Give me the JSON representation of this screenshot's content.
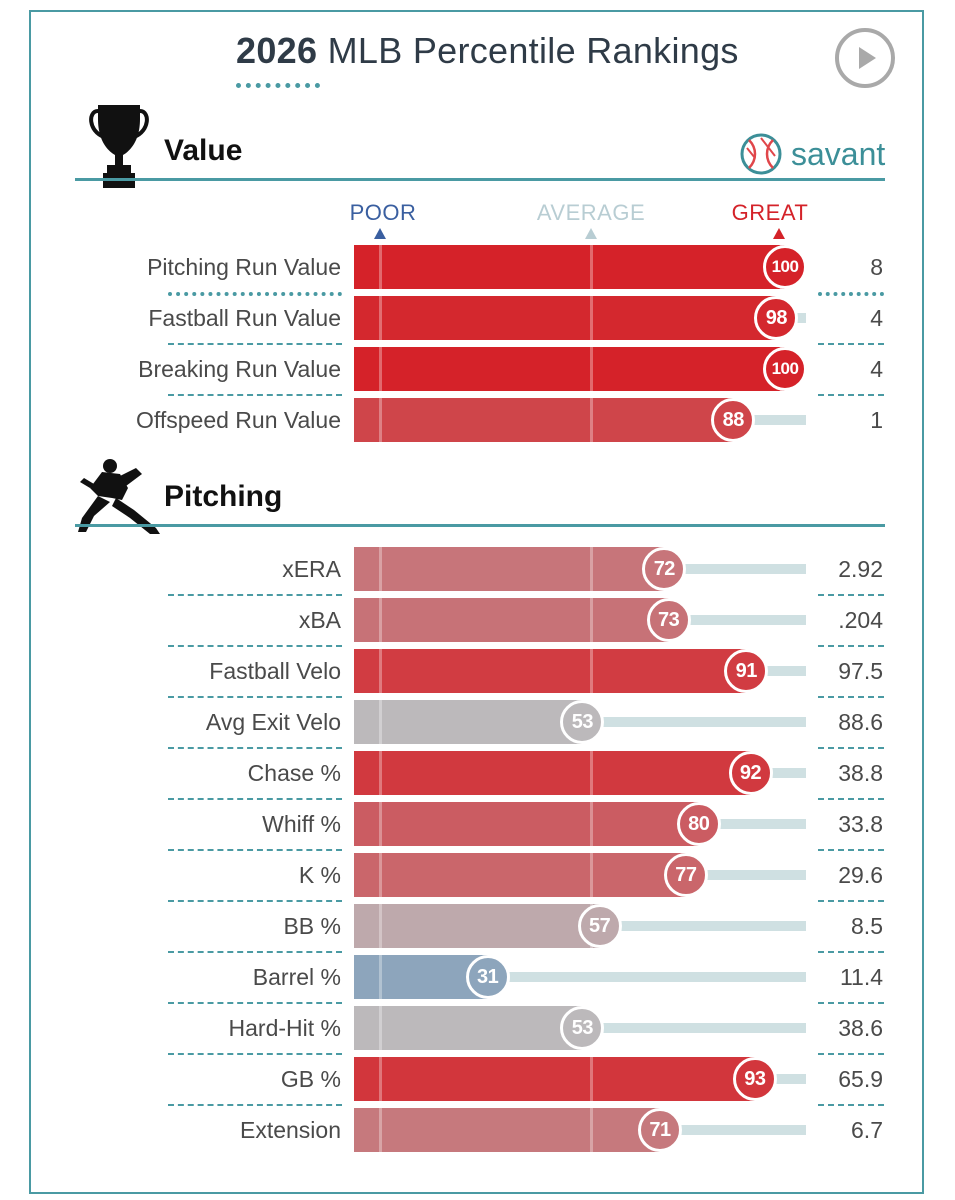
{
  "header": {
    "title_bold": "2026",
    "title_rest": " MLB Percentile Rankings",
    "play_icon": "play-icon"
  },
  "value_section": {
    "title": "Value",
    "icon": "trophy-icon",
    "brand": "savant",
    "brand_icon": "baseball-icon"
  },
  "pitching_section": {
    "title": "Pitching",
    "icon": "pitcher-silhouette-icon"
  },
  "scale": {
    "poor": "POOR",
    "average": "AVERAGE",
    "great": "GREAT",
    "colors": {
      "poor": "#3a5fa0",
      "average": "#b8cdd3",
      "great": "#d42229"
    }
  },
  "chart_data": {
    "type": "bar",
    "title": "2026 MLB Percentile Rankings",
    "xlim": [
      0,
      100
    ],
    "groups": [
      {
        "name": "Value",
        "metrics": [
          {
            "label": "Pitching Run Value",
            "percentile": 100,
            "value": "8"
          },
          {
            "label": "Fastball Run Value",
            "percentile": 98,
            "value": "4"
          },
          {
            "label": "Breaking Run Value",
            "percentile": 100,
            "value": "4"
          },
          {
            "label": "Offspeed Run Value",
            "percentile": 88,
            "value": "1"
          }
        ]
      },
      {
        "name": "Pitching",
        "metrics": [
          {
            "label": "xERA",
            "percentile": 72,
            "value": "2.92"
          },
          {
            "label": "xBA",
            "percentile": 73,
            "value": ".204"
          },
          {
            "label": "Fastball Velo",
            "percentile": 91,
            "value": "97.5"
          },
          {
            "label": "Avg Exit Velo",
            "percentile": 53,
            "value": "88.6"
          },
          {
            "label": "Chase %",
            "percentile": 92,
            "value": "38.8"
          },
          {
            "label": "Whiff %",
            "percentile": 80,
            "value": "33.8"
          },
          {
            "label": "K %",
            "percentile": 77,
            "value": "29.6"
          },
          {
            "label": "BB %",
            "percentile": 57,
            "value": "8.5"
          },
          {
            "label": "Barrel %",
            "percentile": 31,
            "value": "11.4"
          },
          {
            "label": "Hard-Hit %",
            "percentile": 53,
            "value": "38.6"
          },
          {
            "label": "GB %",
            "percentile": 93,
            "value": "65.9"
          },
          {
            "label": "Extension",
            "percentile": 71,
            "value": "6.7"
          }
        ]
      }
    ]
  }
}
